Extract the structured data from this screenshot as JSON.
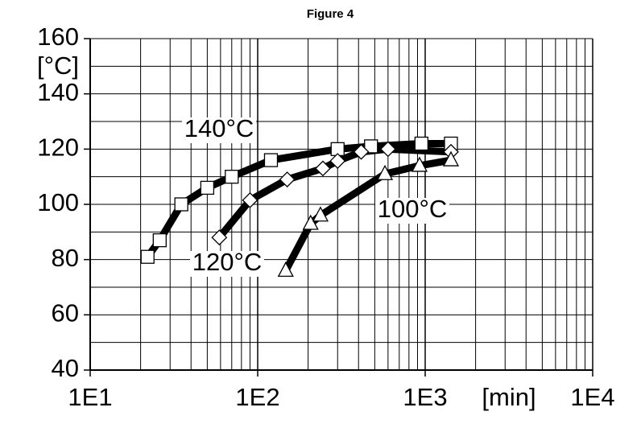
{
  "chart_data": {
    "type": "line",
    "title": "Figure 4",
    "y_label": "[°C]",
    "x_label": "[min]",
    "log_x": true,
    "grid": true,
    "xlim": [
      10,
      10000
    ],
    "xticks": [
      {
        "value": 10,
        "label": "1E1"
      },
      {
        "value": 100,
        "label": "1E2"
      },
      {
        "value": 1000,
        "label": "1E3"
      },
      {
        "value": 10000,
        "label": "1E4"
      }
    ],
    "ylim": [
      40,
      160
    ],
    "yticks": [
      40,
      60,
      80,
      100,
      120,
      140,
      160
    ],
    "ygrid": [
      40,
      50,
      60,
      70,
      80,
      90,
      100,
      110,
      120,
      130,
      140,
      150,
      160
    ],
    "series": [
      {
        "name": "140°C",
        "marker": "square",
        "color": "#000000",
        "x": [
          22,
          26,
          35,
          50,
          70,
          120,
          300,
          475,
          950,
          1425
        ],
        "values": [
          81,
          87,
          100,
          106,
          110,
          116,
          120,
          121,
          122,
          122
        ]
      },
      {
        "name": "120°C",
        "marker": "diamond",
        "color": "#000000",
        "x": [
          59,
          90,
          150,
          245,
          300,
          415,
          600,
          1425
        ],
        "values": [
          88,
          101.5,
          109,
          113,
          115.7,
          119,
          120,
          119
        ]
      },
      {
        "name": "100°C",
        "marker": "triangle",
        "color": "#000000",
        "x": [
          147,
          207,
          237,
          575,
          925,
          1425
        ],
        "values": [
          76,
          93,
          96,
          111,
          114,
          116
        ]
      }
    ]
  }
}
